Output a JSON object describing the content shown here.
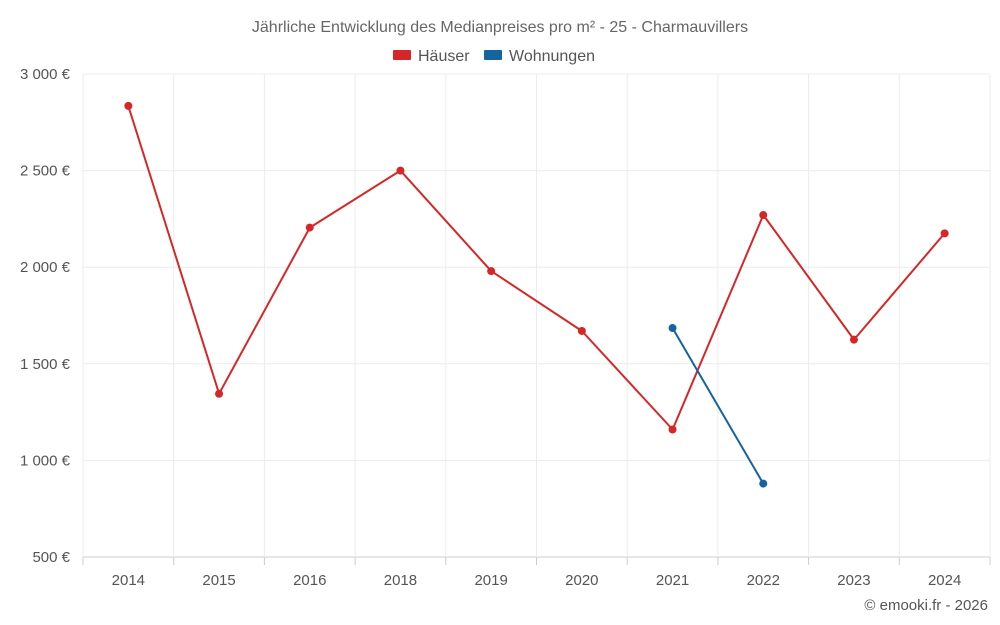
{
  "chart_data": {
    "type": "line",
    "title": "Jährliche Entwicklung des Medianpreises pro m² - 25 - Charmauvillers",
    "categories": [
      "2014",
      "2015",
      "2016",
      "2018",
      "2019",
      "2020",
      "2021",
      "2022",
      "2023",
      "2024"
    ],
    "ylim": [
      500,
      3000
    ],
    "yticks": [
      500,
      1000,
      1500,
      2000,
      2500,
      3000
    ],
    "ytick_labels": [
      "500 €",
      "1 000 €",
      "1 500 €",
      "2 000 €",
      "2 500 €",
      "3 000 €"
    ],
    "grid": true,
    "legend_position": "top-center",
    "series": [
      {
        "name": "Häuser",
        "color": "#d62728",
        "values": [
          2835,
          1345,
          2205,
          2500,
          1980,
          1670,
          1160,
          2270,
          1625,
          2175
        ]
      },
      {
        "name": "Wohnungen",
        "color": "#1464a0",
        "values": [
          null,
          null,
          null,
          null,
          null,
          null,
          1685,
          880,
          null,
          null
        ]
      }
    ],
    "credit": "© emooki.fr - 2026"
  }
}
